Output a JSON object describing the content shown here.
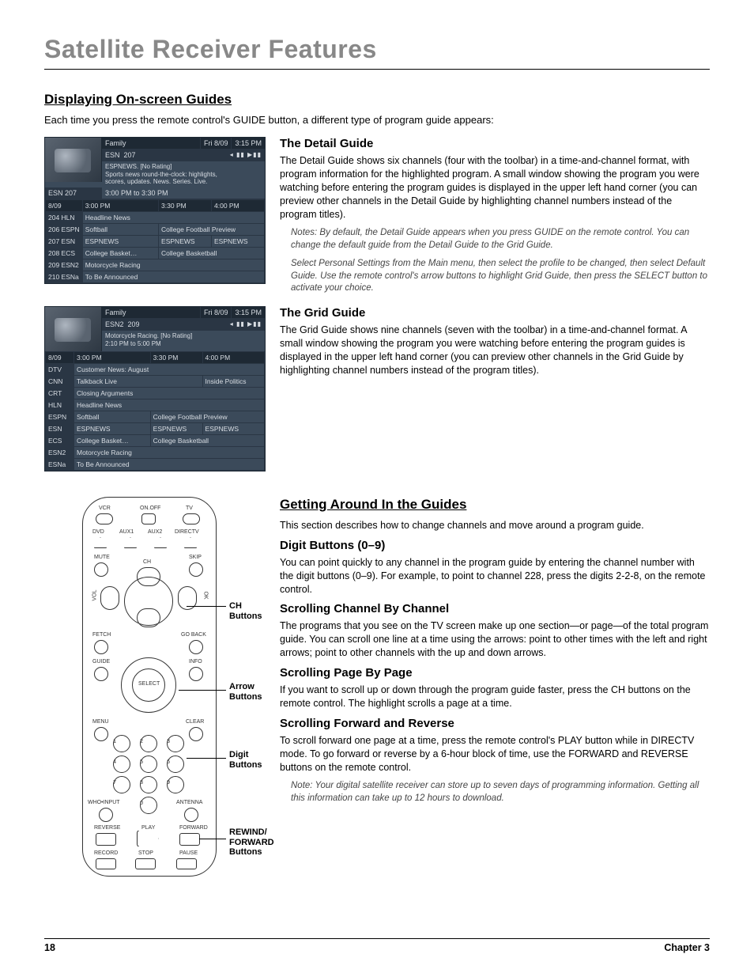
{
  "page_title": "Satellite Receiver Features",
  "section1": {
    "heading": "Displaying On-screen Guides",
    "intro": "Each time you press the remote control's GUIDE button, a different type of program guide appears:"
  },
  "detail_guide": {
    "heading": "The Detail Guide",
    "body": "The Detail Guide shows six channels (four with the toolbar) in a time-and-channel format, with program information for the highlighted program. A small window showing the program you were watching before entering the program guides is displayed in the upper left hand corner (you can preview other channels in the Detail Guide by highlighting channel numbers instead of the program titles).",
    "note1": "Notes: By default, the Detail Guide appears when you press GUIDE on the remote control. You can change the default guide from the Detail Guide to the Grid Guide.",
    "note2": "Select Personal Settings from the Main menu, then select the profile to be changed, then select Default Guide. Use the remote control's arrow buttons to highlight Grid Guide, then press the SELECT button to activate your choice."
  },
  "grid_guide": {
    "heading": "The Grid Guide",
    "body": "The Grid Guide shows nine channels (seven with the toolbar) in a time-and-channel format. A small window showing the program you were watching before entering the program guides is displayed in the upper left hand corner (you can preview other channels in the Grid Guide by highlighting channel numbers instead of the program titles)."
  },
  "section2": {
    "heading": "Getting Around In the Guides",
    "intro": "This section describes how to change channels and move around a program guide."
  },
  "digit": {
    "heading": "Digit Buttons (0–9)",
    "body": "You can point quickly to any channel in the program guide by entering the channel number with the digit buttons (0–9). For example, to point to channel 228, press the digits 2-2-8, on the remote control."
  },
  "scroll_ch": {
    "heading": "Scrolling Channel By Channel",
    "body": "The programs that you see on the TV screen make up one section—or page—of the total program guide. You can scroll one line at a time using the arrows: point to other times with the left and right arrows; point to other channels with the up and down arrows."
  },
  "scroll_pg": {
    "heading": "Scrolling Page By Page",
    "body": "If you want to scroll up or down through the program guide faster, press the CH buttons on the remote control. The highlight scrolls a page at a time."
  },
  "scroll_fr": {
    "heading": "Scrolling Forward and Reverse",
    "body": "To scroll forward one page at a time, press the remote control's PLAY button while in DIRECTV mode. To go forward or reverse by a 6-hour block of time, use the FORWARD and REVERSE buttons on the remote control.",
    "note": "Note: Your digital satellite receiver can store up to seven days of programming information. Getting all this information can take up to 12 hours to download."
  },
  "guide1": {
    "header": {
      "category": "Family",
      "date": "Fri 8/09",
      "time": "3:15 PM",
      "ch_label": "ESN",
      "ch_num": "207",
      "icons": "◂ ▮▮ ▶▮▮"
    },
    "info": {
      "line1": "ESPNEWS. [No Rating]",
      "line2": "Sports news round-the-clock: highlights,",
      "line3": "scores, updates. News. Series. Live.",
      "current_ch": "ESN 207",
      "timespan": "3:00 PM to 3:30 PM"
    },
    "time_header": {
      "date": "8/09",
      "t1": "3:00 PM",
      "t2": "3:30 PM",
      "t3": "4:00 PM"
    },
    "rows": [
      {
        "ch": "204 HLN",
        "cells": [
          "Headline News",
          "",
          ""
        ],
        "spans": [
          3
        ]
      },
      {
        "ch": "206 ESPN",
        "cells": [
          "Softball",
          "College Football Preview"
        ],
        "spans": [
          1,
          2
        ]
      },
      {
        "ch": "207 ESN",
        "cells": [
          "ESPNEWS",
          "ESPNEWS",
          "ESPNEWS"
        ],
        "spans": [
          1,
          1,
          1
        ]
      },
      {
        "ch": "208 ECS",
        "cells": [
          "College Basket…",
          "College Basketball"
        ],
        "spans": [
          1,
          2
        ]
      },
      {
        "ch": "209 ESN2",
        "cells": [
          "Motorcycle Racing",
          "",
          ""
        ],
        "spans": [
          3
        ]
      },
      {
        "ch": "210 ESNa",
        "cells": [
          "To Be Announced",
          "",
          ""
        ],
        "spans": [
          3
        ]
      }
    ]
  },
  "guide2": {
    "header": {
      "category": "Family",
      "date": "Fri 8/09",
      "time": "3:15 PM",
      "ch_label": "ESN2",
      "ch_num": "209",
      "icons": "◂ ▮▮ ▶▮▮"
    },
    "info": {
      "line1": "Motorcycle Racing. [No Rating]",
      "line2": "2:10 PM to 5:00 PM"
    },
    "time_header": {
      "date": "8/09",
      "t1": "3:00 PM",
      "t2": "3:30 PM",
      "t3": "4:00 PM"
    },
    "rows": [
      {
        "ch": "DTV",
        "cells": [
          "Customer News: August"
        ],
        "spans": [
          3
        ]
      },
      {
        "ch": "CNN",
        "cells": [
          "Talkback Live",
          "",
          "Inside Politics"
        ],
        "spans": [
          2,
          0,
          1
        ]
      },
      {
        "ch": "CRT",
        "cells": [
          "Closing Arguments"
        ],
        "spans": [
          3
        ]
      },
      {
        "ch": "HLN",
        "cells": [
          "Headline News"
        ],
        "spans": [
          3
        ]
      },
      {
        "ch": "ESPN",
        "cells": [
          "Softball",
          "College Football Preview"
        ],
        "spans": [
          1,
          2
        ]
      },
      {
        "ch": "ESN",
        "cells": [
          "ESPNEWS",
          "ESPNEWS",
          "ESPNEWS"
        ],
        "spans": [
          1,
          1,
          1
        ]
      },
      {
        "ch": "ECS",
        "cells": [
          "College Basket…",
          "College Basketball"
        ],
        "spans": [
          1,
          2
        ]
      },
      {
        "ch": "ESN2",
        "cells": [
          "Motorcycle Racing"
        ],
        "spans": [
          3
        ]
      },
      {
        "ch": "ESNa",
        "cells": [
          "To Be Announced"
        ],
        "spans": [
          3
        ]
      }
    ]
  },
  "remote": {
    "top_labels": {
      "vcr": "VCR",
      "onoff": "ON.OFF",
      "tv": "TV",
      "dvd": "DVD",
      "aux1": "AUX1",
      "aux2": "AUX2",
      "directv": "DIRECTV"
    },
    "labels": {
      "mute": "MUTE",
      "skip": "SKIP",
      "ch": "CH",
      "vol": "VOL",
      "ok": "OK",
      "fetch": "FETCH",
      "goback": "GO BACK",
      "guide": "GUIDE",
      "info": "INFO",
      "select": "SELECT",
      "menu": "MENU",
      "clear": "CLEAR",
      "whoinput": "WHO•INPUT",
      "antenna": "ANTENNA",
      "reverse": "REVERSE",
      "play": "PLAY",
      "forward": "FORWARD",
      "record": "RECORD",
      "stop": "STOP",
      "pause": "PAUSE"
    },
    "digits": [
      "1",
      "2",
      "3",
      "4",
      "5",
      "6",
      "7",
      "8",
      "9",
      "0"
    ],
    "callouts": {
      "ch": "CH Buttons",
      "arrow": "Arrow Buttons",
      "digit": "Digit Buttons",
      "rewind": "REWIND/ FORWARD Buttons"
    }
  },
  "footer": {
    "page": "18",
    "chapter": "Chapter 3"
  }
}
